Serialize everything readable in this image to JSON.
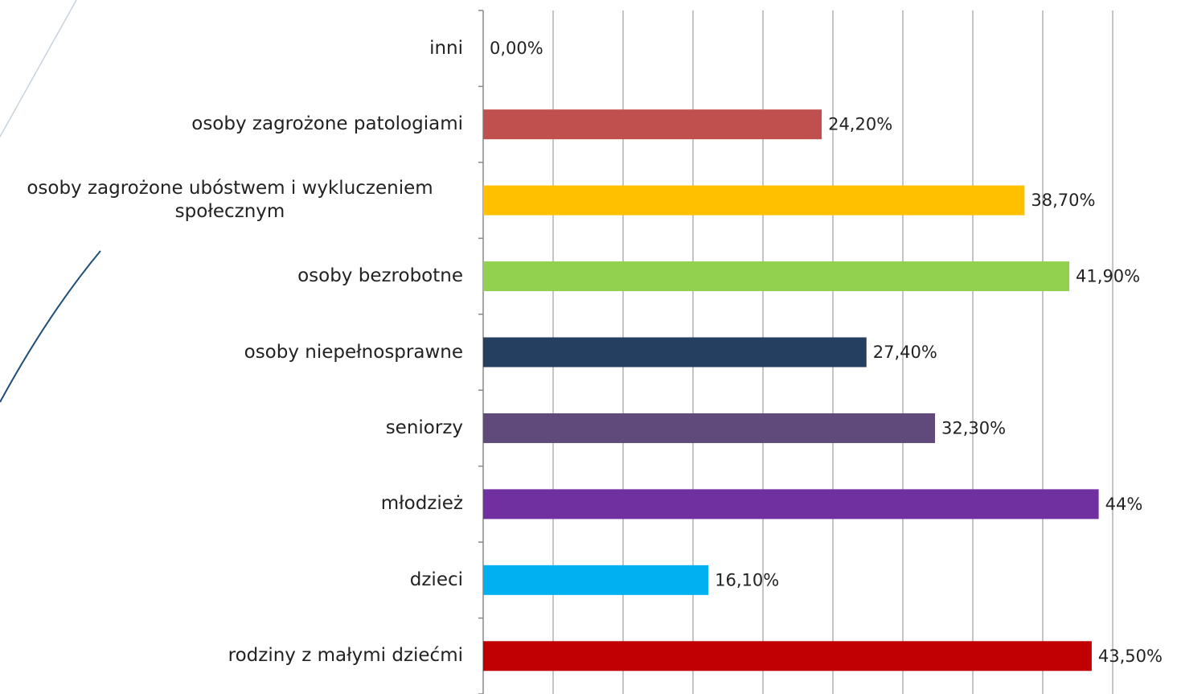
{
  "chart_data": {
    "type": "barh",
    "categories": [
      "inni",
      "osoby zagrożone patologiami",
      "osoby zagrożone ubóstwem i wykluczeniem społecznym",
      "osoby bezrobotne",
      "osoby niepełnosprawne",
      "seniorzy",
      "młodzież",
      "dzieci",
      "rodziny z małymi dziećmi"
    ],
    "values": [
      0,
      24.2,
      38.7,
      41.9,
      27.4,
      32.3,
      44,
      16.1,
      43.5
    ],
    "value_labels": [
      "0,00%",
      "24,20%",
      "38,70%",
      "41,90%",
      "27,40%",
      "32,30%",
      "44%",
      "16,10%",
      "43,50%"
    ],
    "colors": [
      "#4f81bd",
      "#c0504d",
      "#ffc000",
      "#92d050",
      "#243f60",
      "#604a7b",
      "#7030a0",
      "#00b0f0",
      "#c00000"
    ],
    "xlim": [
      0,
      45
    ],
    "xticks": [
      0,
      5,
      10,
      15,
      20,
      25,
      30,
      35,
      40,
      45
    ],
    "grid": true
  }
}
